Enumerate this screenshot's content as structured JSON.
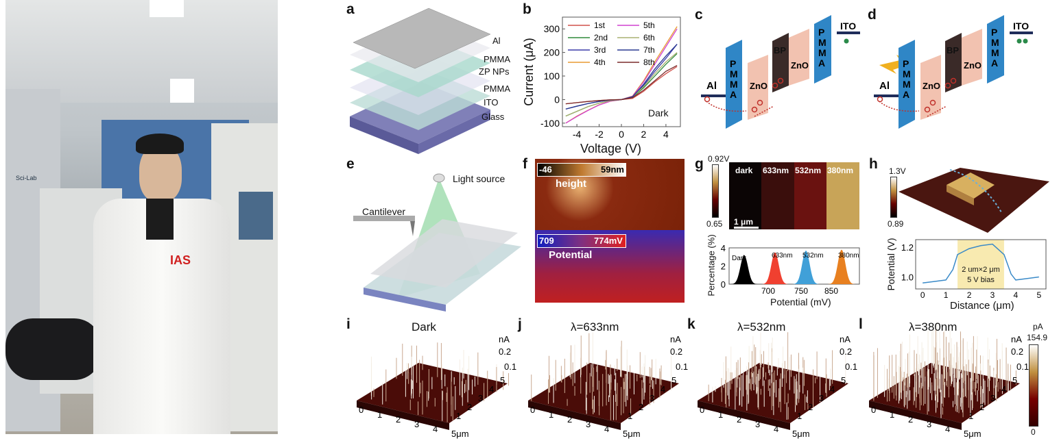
{
  "panel_labels": [
    "a",
    "b",
    "c",
    "d",
    "e",
    "f",
    "g",
    "h",
    "i",
    "j",
    "k",
    "l"
  ],
  "photo": {
    "logo_text": "IAS",
    "sign_text": "Sci-Lab"
  },
  "a": {
    "layers": [
      "Al",
      "PMMA",
      "ZP NPs",
      "PMMA",
      "ITO",
      "Glass"
    ]
  },
  "b": {
    "xlabel": "Voltage (V)",
    "ylabel": "Current (μA)",
    "annotation": "Dark"
  },
  "c": {
    "labels": {
      "al": "Al",
      "pmma": "P\nM\nM\nA",
      "zno1": "ZnO",
      "bp": "BP",
      "zno2": "ZnO",
      "pmma2": "P\nM\nM\nA",
      "ito": "ITO"
    }
  },
  "e": {
    "light": "Light source",
    "cantilever": "Cantilever"
  },
  "f": {
    "height_min": "-46",
    "height_max": "59nm",
    "height_label": "height",
    "pot_min": "709",
    "pot_max": "774mV",
    "pot_label": "Potential"
  },
  "g": {
    "cb_max": "0.92V",
    "cb_min": "0.65",
    "maps": [
      "dark",
      "633nm",
      "532nm",
      "380nm"
    ],
    "scale_bar": "1 μm"
  },
  "h": {
    "cb_max": "1.3V",
    "cb_min": "0.89",
    "box_line1": "2 um×2 μm",
    "box_line2": "5 V bias"
  },
  "iv": {
    "titles": [
      "Dark",
      "λ=633nm",
      "λ=532nm",
      "λ=380nm"
    ],
    "x_ticks": [
      "0",
      "1",
      "2",
      "3",
      "4",
      "5μm"
    ],
    "y_ticks": [
      "1",
      "2",
      "3",
      "4",
      "5"
    ],
    "z_unit": "nA",
    "z_ticks": [
      "0.2",
      "0.1"
    ],
    "cb_unit": "pA",
    "cb_max": "154.9",
    "cb_min": "0"
  },
  "colors": {
    "pmma": "#2f86c6",
    "zno": "#f2c2b0",
    "bp": "#3a2a28",
    "afm_dark": "#5a0c08",
    "afm_gold": "#c9a24a",
    "ito": "#1f2d5a",
    "hole": "#c0302a"
  },
  "chart_data": [
    {
      "type": "line",
      "panel": "b",
      "xlabel": "Voltage (V)",
      "ylabel": "Current (μA)",
      "xlim": [
        -5.3,
        5.3
      ],
      "ylim": [
        -115,
        350
      ],
      "x_ticks": [
        -4,
        -2,
        0,
        2,
        4
      ],
      "y_ticks": [
        -100,
        0,
        100,
        200,
        300
      ],
      "legend": "top-left",
      "x": [
        -5,
        -4,
        -3,
        -2,
        -1,
        0,
        1,
        2,
        3,
        4,
        5
      ],
      "series": [
        {
          "name": "1st",
          "color": "#d0504a",
          "values": [
            -18,
            -13,
            -8,
            -4,
            -1,
            0,
            5,
            35,
            75,
            110,
            140
          ]
        },
        {
          "name": "2nd",
          "color": "#2e8a3a",
          "values": [
            -70,
            -50,
            -30,
            -15,
            -5,
            0,
            10,
            50,
            100,
            150,
            195
          ]
        },
        {
          "name": "3rd",
          "color": "#3a3aa8",
          "values": [
            -40,
            -28,
            -17,
            -8,
            -2,
            0,
            10,
            60,
            120,
            175,
            235
          ]
        },
        {
          "name": "4th",
          "color": "#e89a30",
          "values": [
            -100,
            -70,
            -45,
            -22,
            -7,
            0,
            15,
            80,
            160,
            235,
            310
          ]
        },
        {
          "name": "5th",
          "color": "#d040d0",
          "values": [
            -100,
            -72,
            -46,
            -23,
            -7,
            0,
            14,
            75,
            150,
            225,
            300
          ]
        },
        {
          "name": "6th",
          "color": "#a8b070",
          "values": [
            -70,
            -50,
            -30,
            -15,
            -5,
            0,
            12,
            55,
            110,
            160,
            200
          ]
        },
        {
          "name": "7th",
          "color": "#283890",
          "values": [
            -40,
            -28,
            -17,
            -8,
            -2,
            0,
            12,
            65,
            130,
            185,
            235
          ]
        },
        {
          "name": "8th",
          "color": "#7a2a2a",
          "values": [
            -18,
            -13,
            -8,
            -4,
            -1,
            0,
            8,
            40,
            80,
            120,
            145
          ]
        }
      ]
    },
    {
      "type": "bar",
      "panel": "g",
      "xlabel": "Potential (mV)",
      "ylabel": "Percentage (%)",
      "ylim": [
        0,
        4
      ],
      "y_ticks": [
        0,
        2,
        4
      ],
      "x_ticks": [
        "700",
        "750",
        "850"
      ],
      "series": [
        {
          "name": "Dark",
          "center": 665,
          "peak": 3.2,
          "color": "#000000"
        },
        {
          "name": "633nm",
          "center": 705,
          "peak": 3.5,
          "color": "#f04030"
        },
        {
          "name": "532nm",
          "center": 745,
          "peak": 3.7,
          "color": "#40a0d8"
        },
        {
          "name": "380nm",
          "center": 865,
          "peak": 3.8,
          "color": "#e88020"
        }
      ]
    },
    {
      "type": "line",
      "panel": "h",
      "xlabel": "Distance (μm)",
      "ylabel": "Potential (V)",
      "xlim": [
        -0.3,
        5.3
      ],
      "ylim": [
        0.92,
        1.25
      ],
      "x_ticks": [
        0,
        1,
        2,
        3,
        4,
        5
      ],
      "y_ticks": [
        1.0,
        1.2
      ],
      "highlight": [
        1.5,
        3.5
      ],
      "x": [
        0,
        0.5,
        1,
        1.3,
        1.5,
        2,
        2.5,
        3,
        3.5,
        3.8,
        4,
        4.5,
        5
      ],
      "values": [
        0.96,
        0.97,
        0.98,
        1.05,
        1.15,
        1.19,
        1.21,
        1.22,
        1.15,
        1.02,
        0.98,
        0.99,
        1.0
      ]
    }
  ]
}
